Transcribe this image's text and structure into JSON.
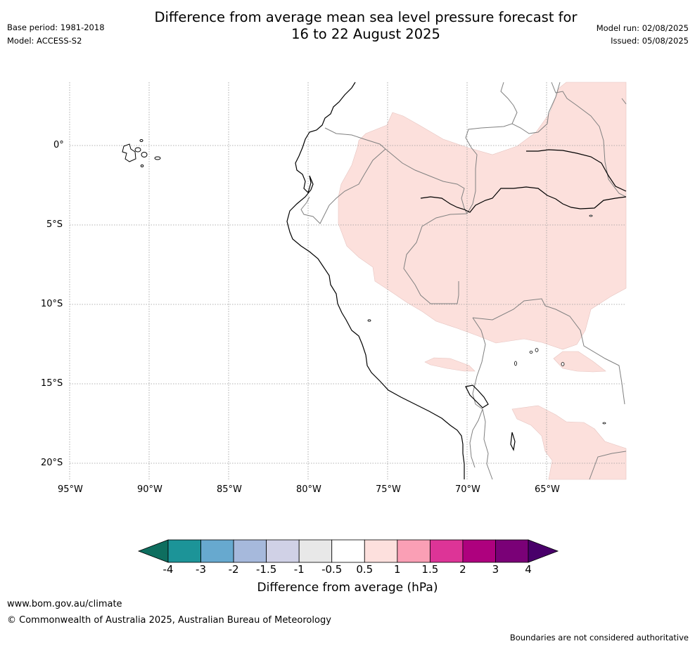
{
  "header": {
    "base_period": "Base period: 1981-2018",
    "model": "Model: ACCESS-S2",
    "title_line1": "Difference from average mean sea level pressure forecast for",
    "title_line2": "16 to 22 August 2025",
    "model_run": "Model run: 02/08/2025",
    "issued": "Issued: 05/08/2025"
  },
  "map": {
    "lat_labels": [
      "0°",
      "5°S",
      "10°S",
      "15°S",
      "20°S"
    ],
    "lon_labels": [
      "95°W",
      "90°W",
      "85°W",
      "80°W",
      "75°W",
      "70°W",
      "65°W"
    ],
    "anomaly_fill_color": "#fce0dc",
    "coast_color": "#000000",
    "border_color": "#808080"
  },
  "colorbar": {
    "ticks": [
      "-4",
      "-3",
      "-2",
      "-1.5",
      "-1",
      "-0.5",
      "0.5",
      "1",
      "1.5",
      "2",
      "3",
      "4"
    ],
    "colors": [
      "#0e6e5f",
      "#1c9498",
      "#67a9cf",
      "#a6b9dc",
      "#d0d1e6",
      "#e8e8e8",
      "#ffffff",
      "#fde0dd",
      "#fa9fb5",
      "#dd3497",
      "#ae017e",
      "#7a0177",
      "#49006a"
    ],
    "label": "Difference from average (hPa)"
  },
  "footer": {
    "website": "www.bom.gov.au/climate",
    "copyright": "© Commonwealth of Australia 2025, Australian Bureau of Meteorology",
    "disclaimer": "Boundaries are not considered authoritative"
  }
}
